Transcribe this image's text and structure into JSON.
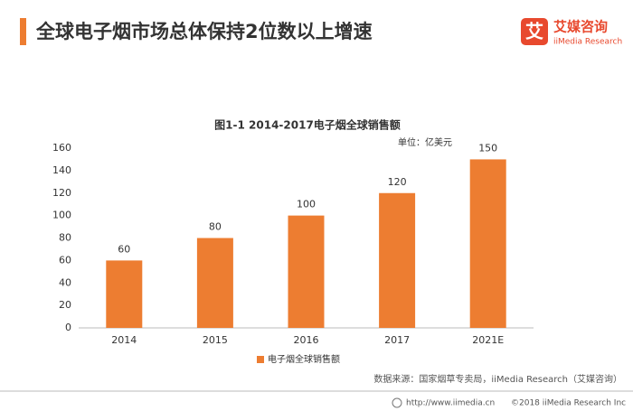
{
  "header": {
    "title": "全球电子烟市场总体保持2位数以上增速"
  },
  "logo": {
    "icon": "艾",
    "name": "艾媒咨询",
    "sub": "iiMedia Research"
  },
  "chart_data": {
    "type": "bar",
    "title": "图1-1 2014-2017电子烟全球销售额",
    "unit": "单位：亿美元",
    "categories": [
      "2014",
      "2015",
      "2016",
      "2017",
      "2021E"
    ],
    "series": [
      {
        "name": "电子烟全球销售额",
        "color": "#ed7d31",
        "values": [
          60,
          80,
          100,
          120,
          150
        ]
      }
    ],
    "ylim": [
      0,
      160
    ],
    "yticks": [
      0,
      20,
      40,
      60,
      80,
      100,
      120,
      140,
      160
    ],
    "grid": false,
    "source": "数据来源：国家烟草专卖局，iiMedia Research（艾媒咨询）"
  },
  "footer": {
    "url": "http://www.iimedia.cn",
    "copyright": "©2018  iiMedia Research  Inc"
  }
}
